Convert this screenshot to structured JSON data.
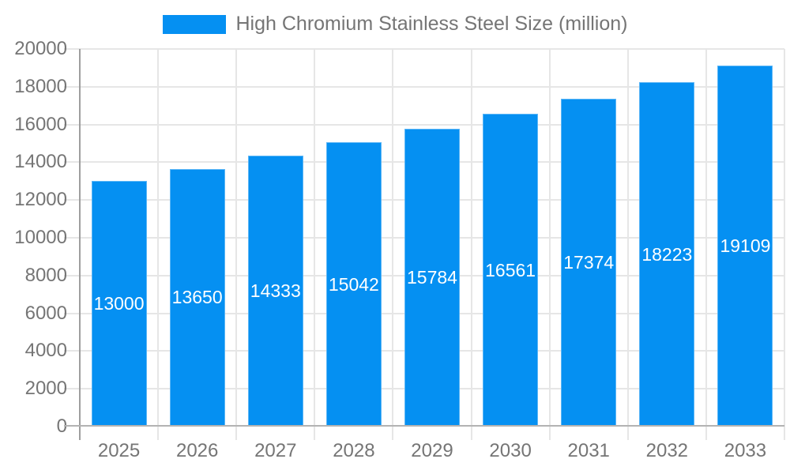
{
  "legend": {
    "label": "High Chromium Stainless Steel Size (million)"
  },
  "chart_data": {
    "type": "bar",
    "title": "High Chromium Stainless Steel Size (million)",
    "categories": [
      "2025",
      "2026",
      "2027",
      "2028",
      "2029",
      "2030",
      "2031",
      "2032",
      "2033"
    ],
    "values": [
      13000,
      13650,
      14333,
      15042,
      15784,
      16561,
      17374,
      18223,
      19109
    ],
    "xlabel": "",
    "ylabel": "",
    "ylim": [
      0,
      20000
    ],
    "ytick_step": 2000,
    "grid": true,
    "legend_position": "top",
    "value_labels": "centered-inside-bars",
    "colors": {
      "bar": "#0590f2",
      "value_label": "#ffffff",
      "axis_text": "#757575",
      "gridline": "#e6e6e6",
      "y_axis_line": "#9e9e9e",
      "x_axis_line": "#b3b3b3",
      "background": "#ffffff"
    }
  }
}
